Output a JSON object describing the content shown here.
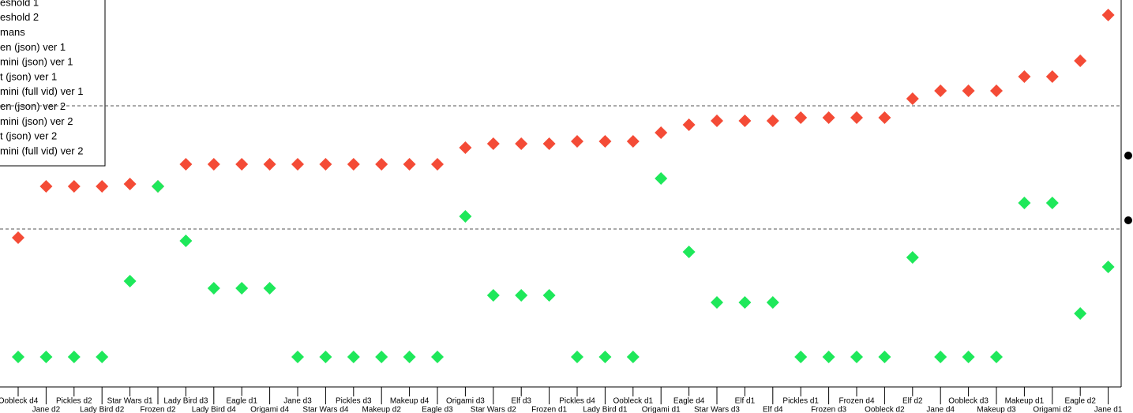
{
  "chart_data": {
    "type": "scatter",
    "categories": [
      "Oobleck d4",
      "Jane d2",
      "Pickles d2",
      "Lady Bird d2",
      "Star Wars d1",
      "Frozen d2",
      "Lady Bird d3",
      "Lady Bird d4",
      "Eagle d1",
      "Origami d4",
      "Jane d3",
      "Star Wars d4",
      "Pickles d3",
      "Makeup d2",
      "Makeup d4",
      "Eagle d3",
      "Origami d3",
      "Star Wars d2",
      "Elf d3",
      "Frozen d1",
      "Pickles d4",
      "Lady Bird d1",
      "Oobleck d1",
      "Origami d1",
      "Eagle d4",
      "Star Wars d3",
      "Elf d1",
      "Elf d4",
      "Pickles d1",
      "Frozen d3",
      "Frozen d4",
      "Oobleck d2",
      "Elf d2",
      "Jane d4",
      "Oobleck d3",
      "Makeup d3",
      "Makeup d1",
      "Origami d2",
      "Eagle d2",
      "Jane d1"
    ],
    "series": [
      {
        "color": "#f44b36",
        "values": [
          18.9,
          25.4,
          25.4,
          25.4,
          25.7,
          25.4,
          28.2,
          28.2,
          28.2,
          28.2,
          28.2,
          28.2,
          28.2,
          28.2,
          28.2,
          28.2,
          30.3,
          30.8,
          30.8,
          30.8,
          31.1,
          31.1,
          31.1,
          32.2,
          33.2,
          33.7,
          33.7,
          33.7,
          34.1,
          34.1,
          34.1,
          34.1,
          36.5,
          37.5,
          37.5,
          37.5,
          39.3,
          39.3,
          41.3,
          47.1
        ]
      },
      {
        "color": "#1ee85a",
        "values": [
          3.8,
          3.8,
          3.8,
          3.8,
          13.4,
          25.4,
          18.5,
          12.5,
          12.5,
          12.5,
          3.8,
          3.8,
          3.8,
          3.8,
          3.8,
          3.8,
          21.6,
          11.6,
          11.6,
          11.6,
          3.8,
          3.8,
          3.8,
          26.4,
          17.1,
          10.7,
          10.7,
          10.7,
          3.8,
          3.8,
          3.8,
          3.8,
          16.4,
          3.8,
          3.8,
          3.8,
          23.3,
          23.3,
          9.3,
          15.2
        ]
      }
    ],
    "thresholds": [
      35.6,
      20.0
    ],
    "ylim": [
      0,
      49
    ],
    "legend": [
      "eshold 1",
      "eshold 2",
      "mans",
      "en (json) ver 1",
      "mini (json) ver 1",
      "t (json) ver 1",
      "mini (full vid) ver 1",
      "en (json) ver 2",
      "mini (json) ver 2",
      "t (json) ver 2",
      "mini (full vid) ver 2"
    ]
  }
}
